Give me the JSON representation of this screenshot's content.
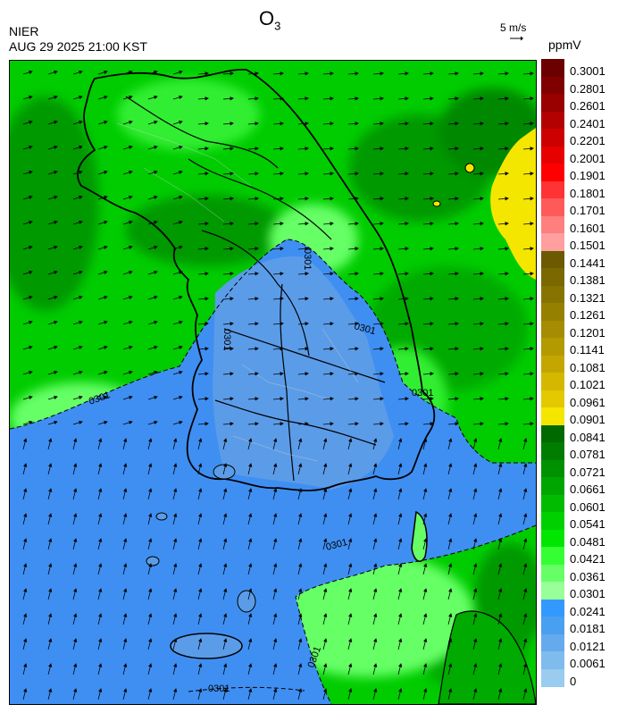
{
  "header": {
    "agency": "NIER",
    "datetime": "AUG 29 2025 21:00 KST",
    "title_main": "O",
    "title_sub": "3",
    "wind_scale_label": "5 m/s",
    "unit": "ppmV"
  },
  "colorbar": {
    "labels": [
      "0.3001",
      "0.2801",
      "0.2601",
      "0.2401",
      "0.2201",
      "0.2001",
      "0.1901",
      "0.1801",
      "0.1701",
      "0.1601",
      "0.1501",
      "0.1441",
      "0.1381",
      "0.1321",
      "0.1261",
      "0.1201",
      "0.1141",
      "0.1081",
      "0.1021",
      "0.0961",
      "0.0901",
      "0.0841",
      "0.0781",
      "0.0721",
      "0.0661",
      "0.0601",
      "0.0541",
      "0.0481",
      "0.0421",
      "0.0361",
      "0.0301",
      "0.0241",
      "0.0181",
      "0.0121",
      "0.0061",
      "0"
    ],
    "colors": [
      "#6b0000",
      "#800000",
      "#990000",
      "#b30000",
      "#cc0000",
      "#e60000",
      "#ff0000",
      "#ff3333",
      "#ff5a5a",
      "#ff7f7f",
      "#ff9f9f",
      "#6b5a00",
      "#7a6800",
      "#877400",
      "#968000",
      "#a58c00",
      "#b49900",
      "#c3a700",
      "#d4b800",
      "#e4c800",
      "#f5e600",
      "#006a00",
      "#007d00",
      "#009100",
      "#00a600",
      "#00bb00",
      "#00d000",
      "#00e600",
      "#33ff33",
      "#66ff66",
      "#99ff99",
      "#3399ff",
      "#4aa0f0",
      "#66aaee",
      "#80bbee",
      "#99ccee"
    ]
  },
  "map": {
    "contour_label": "0301",
    "colors": {
      "land_low": "#4488ee",
      "sea_low": "#3f8ff2",
      "mid_green": "#66ff66",
      "green": "#00cc00",
      "dark_green": "#009900",
      "yellow": "#f5e600",
      "outline": "#000000"
    }
  }
}
